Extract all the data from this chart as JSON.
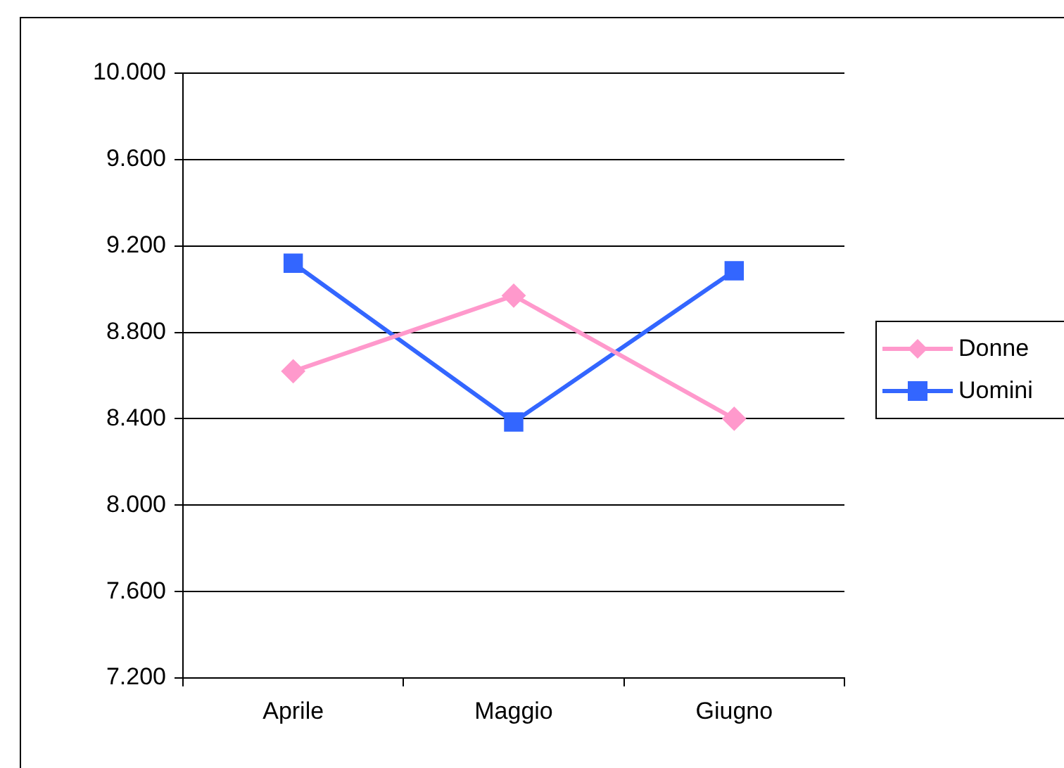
{
  "chart_data": {
    "type": "line",
    "categories": [
      "Aprile",
      "Maggio",
      "Giugno"
    ],
    "series": [
      {
        "name": "Donne",
        "color": "#ff99cc",
        "values": [
          8620,
          8970,
          8400
        ],
        "marker": "diamond"
      },
      {
        "name": "Uomini",
        "color": "#3366ff",
        "values": [
          9120,
          8385,
          9085
        ],
        "marker": "square"
      }
    ],
    "ylim": [
      7200,
      10000
    ],
    "yticks": [
      {
        "value": 7200,
        "label": "7.200"
      },
      {
        "value": 7600,
        "label": "7.600"
      },
      {
        "value": 8000,
        "label": "8.000"
      },
      {
        "value": 8400,
        "label": "8.400"
      },
      {
        "value": 8800,
        "label": "8.800"
      },
      {
        "value": 9200,
        "label": "9.200"
      },
      {
        "value": 9600,
        "label": "9.600"
      },
      {
        "value": 10000,
        "label": "10.000"
      }
    ],
    "grid": "y",
    "legend": "right",
    "line_style": "solid"
  }
}
